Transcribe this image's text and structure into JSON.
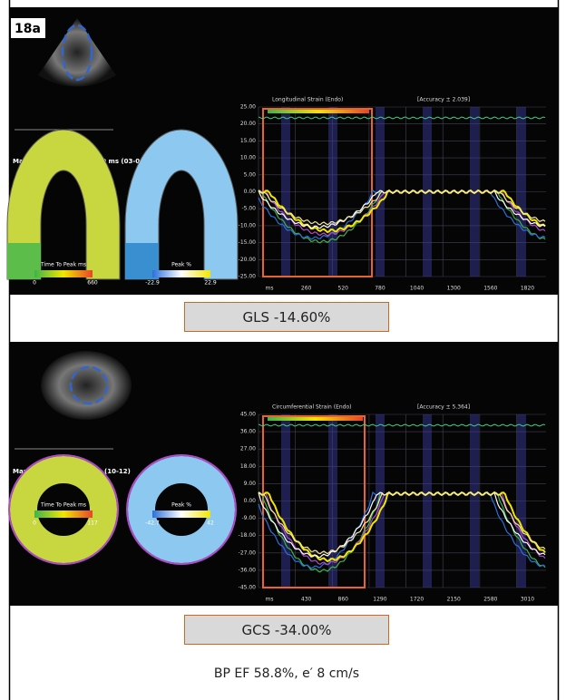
{
  "figure_label": "18a",
  "panels": [
    {
      "plot_title": "Longitudinal Strain (Endo)",
      "accuracy": "[Accuracy ± 2.039]",
      "delay_title": "Max Opp Wall Delay 105.0 ms (03-06)",
      "strain_title": "GLS -14.60 %",
      "legend1": "Time To Peak ms",
      "legend1_range": [
        "0",
        "660"
      ],
      "legend2": "Peak %",
      "legend2_range": [
        "-22.9",
        "22.9"
      ],
      "yticks": [
        "25.00",
        "20.00",
        "15.00",
        "10.00",
        "5.00",
        "0.00",
        "-5.00",
        "-10.00",
        "-15.00",
        "-20.00",
        "-25.00"
      ],
      "xticks": [
        "ms",
        "260",
        "520",
        "780",
        "1040",
        "1300",
        "1560",
        "1820"
      ],
      "caption": "GLS -14.60%"
    },
    {
      "plot_title": "Circumferential Strain (Endo)",
      "accuracy": "[Accuracy ± 5.364]",
      "delay_title": "Max Wall Delay 106.0 ms (10-12)",
      "strain_title": "GCS -34.00 %",
      "legend1": "Time To Peak ms",
      "legend1_range": [
        "0",
        "117"
      ],
      "legend2": "Peak %",
      "legend2_range": [
        "-42.7",
        "42"
      ],
      "yticks": [
        "45.00",
        "36.00",
        "27.00",
        "18.00",
        "9.00",
        "0.00",
        "-9.00",
        "-18.00",
        "-27.00",
        "-36.00",
        "-45.00"
      ],
      "xticks": [
        "ms",
        "430",
        "860",
        "1290",
        "1720",
        "2150",
        "2580",
        "3010"
      ],
      "caption": "GCS -34.00%"
    }
  ],
  "footer": "BP EF 58.8%, e′ 8 cm/s"
}
